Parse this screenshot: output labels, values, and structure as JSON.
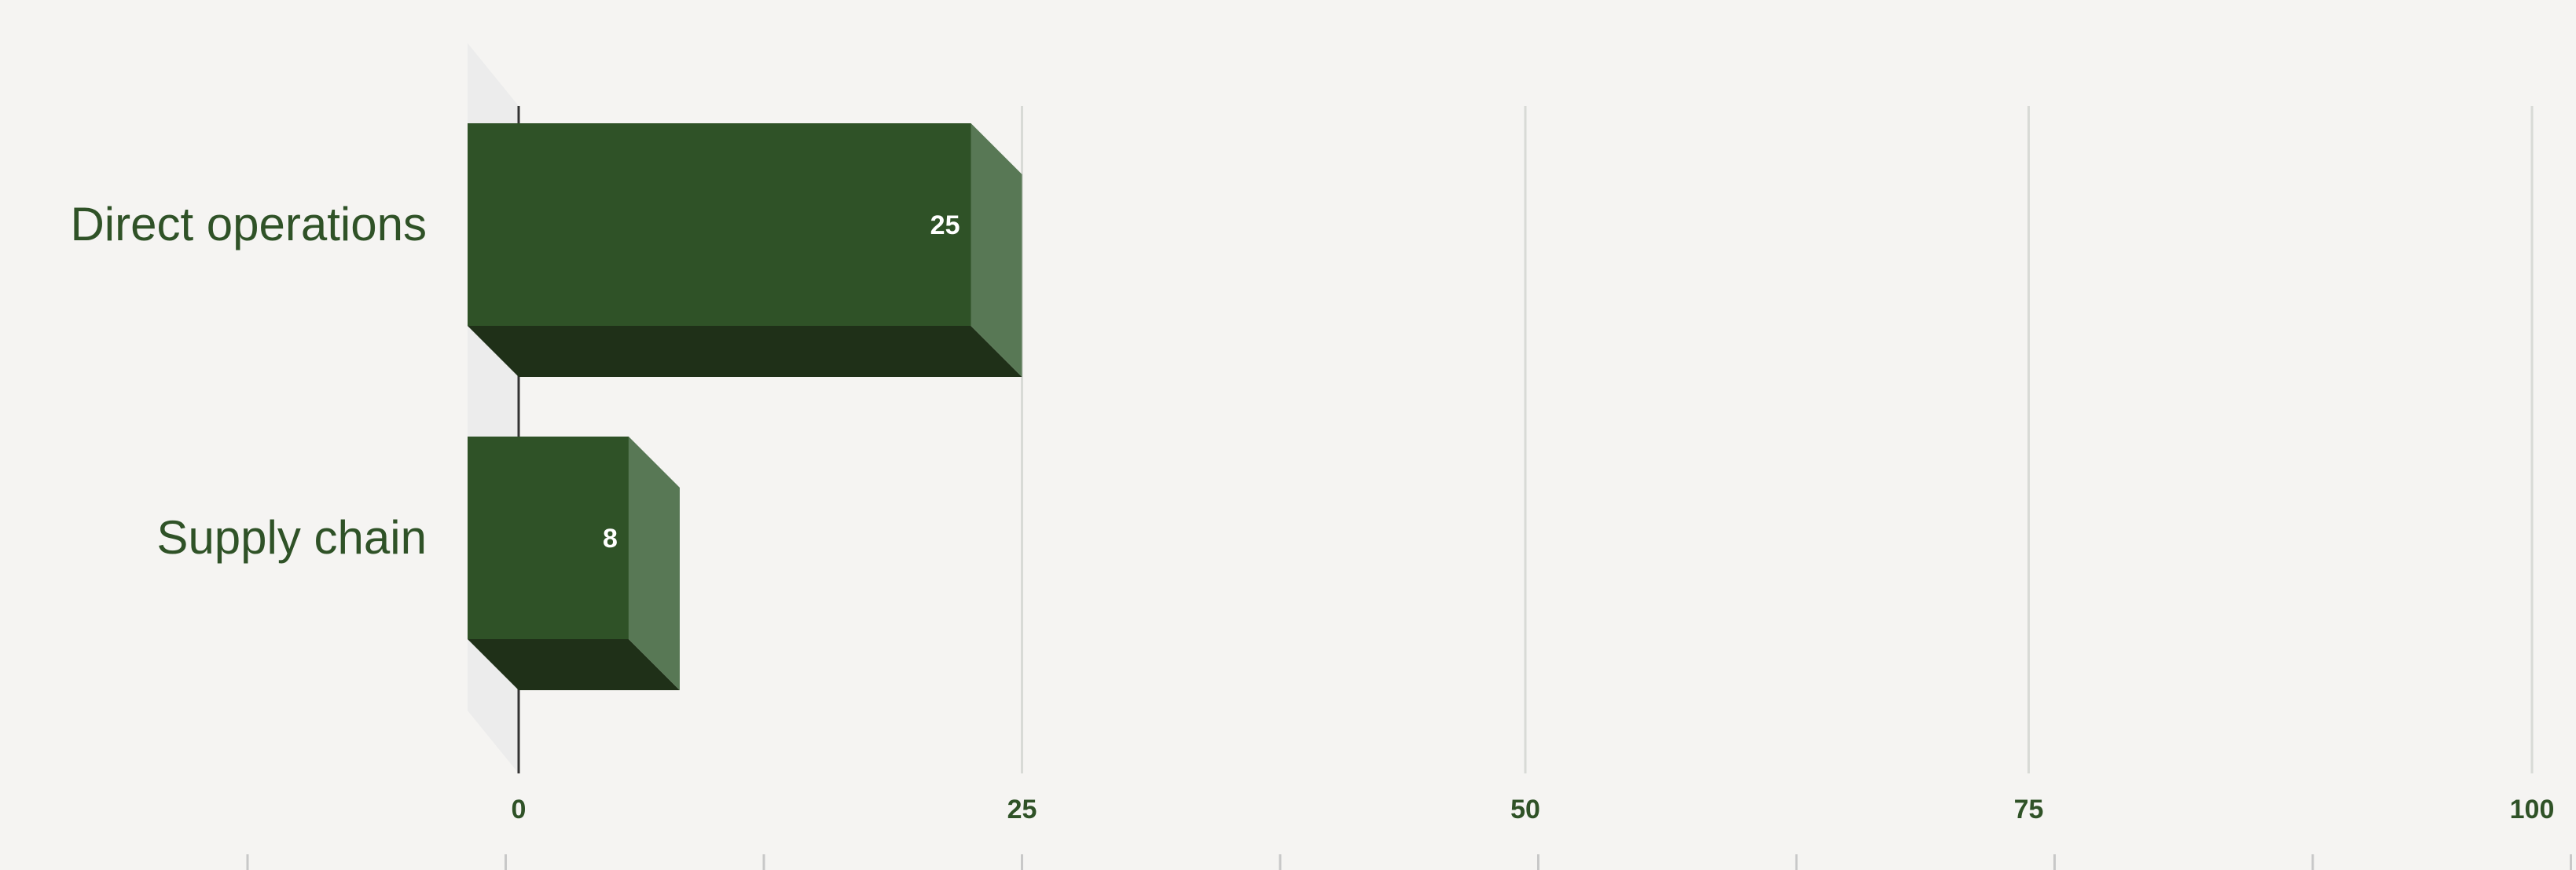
{
  "chart_data": {
    "type": "bar",
    "orientation": "horizontal",
    "style": "3d",
    "categories": [
      "Direct operations",
      "Supply chain"
    ],
    "values": [
      25,
      8
    ],
    "data_labels": [
      "25",
      "8"
    ],
    "xlim": [
      0,
      100
    ],
    "x_ticks": [
      0,
      25,
      50,
      75,
      100
    ],
    "x_tick_labels": [
      "0",
      "25",
      "50",
      "75",
      "100"
    ],
    "grid": true,
    "legend": "none",
    "colors": {
      "bar_front": "#2f5227",
      "bar_side": "#587855",
      "bar_bottom": "#1f3018",
      "text": "#2f5227",
      "grid": "#d8dad6",
      "axis": "#333333",
      "back_wall": "#ececec",
      "background": "#f5f4f2"
    }
  }
}
